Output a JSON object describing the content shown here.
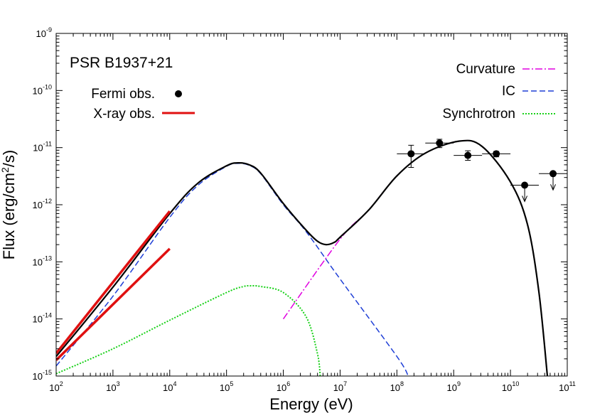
{
  "chart_data": {
    "type": "line",
    "title": "PSR B1937+21",
    "xlabel": "Energy (eV)",
    "ylabel_base": "Flux (erg/cm",
    "ylabel_sup": "2",
    "ylabel_tail": "/s)",
    "xscale": "log",
    "yscale": "log",
    "xlim": [
      100,
      100000000000
    ],
    "ylim": [
      1e-15,
      1e-09
    ],
    "x_tick_base": "10",
    "x_tick_exponents": [
      "2",
      "3",
      "4",
      "5",
      "6",
      "7",
      "8",
      "9",
      "10",
      "11"
    ],
    "y_tick_base": "10",
    "y_tick_exponents": [
      "-15",
      "-14",
      "-13",
      "-12",
      "-11",
      "-10",
      "-9"
    ],
    "grid": false,
    "legend": {
      "left": "top-left",
      "right": "top-right"
    },
    "legend_entries": {
      "fermi": "Fermi obs.",
      "xray": "X-ray obs.",
      "curvature": "Curvature",
      "ic": "IC",
      "synchrotron": "Synchrotron"
    },
    "colors": {
      "total": "#000000",
      "curvature": "#e000e0",
      "ic": "#1f3fd6",
      "synchrotron": "#19d119",
      "xray": "#e01010",
      "fermi": "#000000"
    },
    "series": [
      {
        "name": "IC",
        "points": [
          [
            100,
            1.5e-15
          ],
          [
            1000,
            2.5e-14
          ],
          [
            10000,
            6e-13
          ],
          [
            31623,
            2.2e-12
          ],
          [
            100000,
            4.7e-12
          ],
          [
            158489,
            5.3e-12
          ],
          [
            251189,
            4.9e-12
          ],
          [
            398107,
            3.5e-12
          ],
          [
            1000000,
            1e-12
          ],
          [
            2511886,
            3.4e-13
          ],
          [
            10000000,
            5e-14
          ],
          [
            100000000,
            2.2e-15
          ],
          [
            158489319,
            1e-15
          ]
        ]
      },
      {
        "name": "Synchrotron",
        "points": [
          [
            100,
            1.1e-15
          ],
          [
            1000,
            3e-15
          ],
          [
            10000,
            9.5e-15
          ],
          [
            100000,
            2.9e-14
          ],
          [
            199526,
            3.7e-14
          ],
          [
            251189,
            3.8e-14
          ],
          [
            398107,
            3.7e-14
          ],
          [
            1000000,
            2.9e-14
          ],
          [
            2511886,
            1.1e-14
          ],
          [
            3981072,
            2.5e-15
          ],
          [
            4466836,
            1e-15
          ]
        ]
      },
      {
        "name": "Curvature",
        "points": [
          [
            1000000,
            1e-14
          ],
          [
            10000000,
            2.5e-13
          ],
          [
            31622777,
            8e-13
          ],
          [
            100000000,
            3.2e-12
          ],
          [
            316227766,
            8e-12
          ],
          [
            1258925412,
            1.3e-11
          ],
          [
            3162277660,
            1.05e-11
          ],
          [
            10000000000,
            2.5e-12
          ],
          [
            19952623150,
            4.5e-13
          ],
          [
            31622777660,
            3e-14
          ],
          [
            44668359215,
            1e-15
          ]
        ]
      },
      {
        "name": "Total",
        "points": [
          [
            100,
            2.2e-15
          ],
          [
            1000,
            3.6e-14
          ],
          [
            10000,
            7e-13
          ],
          [
            31623,
            2.4e-12
          ],
          [
            100000,
            4.8e-12
          ],
          [
            158489,
            5.4e-12
          ],
          [
            251189,
            5e-12
          ],
          [
            398107,
            3.6e-12
          ],
          [
            1000000,
            1.05e-12
          ],
          [
            2511886,
            3.6e-13
          ],
          [
            3981072,
            2.3e-13
          ],
          [
            5623413,
            2e-13
          ],
          [
            7943282,
            2.2e-13
          ],
          [
            10000000,
            2.7e-13
          ],
          [
            31622777,
            8e-13
          ],
          [
            100000000,
            3.2e-12
          ],
          [
            316227766,
            8e-12
          ],
          [
            1258925412,
            1.3e-11
          ],
          [
            3162277660,
            1.05e-11
          ],
          [
            10000000000,
            2.5e-12
          ],
          [
            19952623150,
            4.5e-13
          ],
          [
            31622777660,
            3e-14
          ],
          [
            44668359215,
            1e-15
          ]
        ]
      },
      {
        "name": "X-ray obs.",
        "segments": [
          [
            [
              100,
              2.5e-15
            ],
            [
              10000,
              7.7e-13
            ]
          ],
          [
            [
              100,
              1.9e-15
            ],
            [
              10000,
              1.7e-13
            ]
          ]
        ]
      },
      {
        "name": "Fermi obs.",
        "points": [
          {
            "x": 177827941,
            "y": 7.8e-12,
            "xerr": [
              100000000,
              316227766
            ],
            "yerr": [
              4.5e-12,
              1.1e-11
            ]
          },
          {
            "x": 562341325,
            "y": 1.2e-11,
            "xerr": [
              316227766,
              1000000000
            ],
            "yerr": [
              1e-11,
              1.4e-11
            ]
          },
          {
            "x": 1778279410,
            "y": 7.3e-12,
            "xerr": [
              1000000000,
              3162277660
            ],
            "yerr": [
              6e-12,
              8.8e-12
            ]
          },
          {
            "x": 5623413252,
            "y": 7.8e-12,
            "xerr": [
              3162277660,
              10000000000
            ],
            "yerr": [
              6.9e-12,
              8.6e-12
            ]
          },
          {
            "x": 17782794100,
            "y": 2.2e-12,
            "xerr": [
              10000000000,
              31622777660
            ],
            "upper_limit": true
          },
          {
            "x": 56234132519,
            "y": 3.5e-12,
            "xerr": [
              31622777660,
              100000000000
            ],
            "upper_limit": true
          }
        ]
      }
    ]
  }
}
